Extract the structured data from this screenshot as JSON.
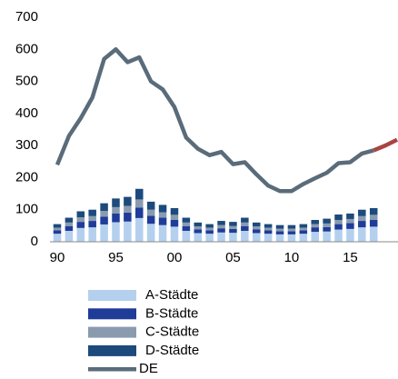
{
  "chart_data": {
    "type": "bar",
    "categories": [
      "90",
      null,
      null,
      null,
      null,
      "95",
      null,
      null,
      null,
      null,
      "00",
      null,
      null,
      null,
      null,
      "05",
      null,
      null,
      null,
      null,
      "10",
      null,
      null,
      null,
      null,
      "15",
      null,
      null,
      null,
      null
    ],
    "stacked": true,
    "series": [
      {
        "name": "A-Städte",
        "color": "#b4d0ee",
        "values": [
          25,
          34,
          43,
          45,
          54,
          61,
          63,
          74,
          56,
          52,
          47,
          34,
          27,
          25,
          29,
          28,
          34,
          27,
          25,
          23,
          23,
          25,
          31,
          32,
          38,
          40,
          45,
          47,
          null,
          null
        ]
      },
      {
        "name": "B-Städte",
        "color": "#1f3c99",
        "values": [
          11,
          15,
          19,
          20,
          24,
          27,
          28,
          33,
          25,
          23,
          21,
          15,
          12,
          11,
          13,
          12,
          15,
          12,
          11,
          10,
          10,
          11,
          14,
          14,
          17,
          18,
          20,
          21,
          null,
          null
        ]
      },
      {
        "name": "C-Städte",
        "color": "#8a9bb0",
        "values": [
          8,
          11,
          14,
          15,
          18,
          20,
          21,
          25,
          19,
          17,
          16,
          11,
          9,
          8,
          10,
          9,
          11,
          9,
          8,
          8,
          8,
          8,
          10,
          11,
          13,
          13,
          15,
          16,
          null,
          null
        ]
      },
      {
        "name": "D-Städte",
        "color": "#1c4a7c",
        "values": [
          11,
          15,
          19,
          20,
          24,
          27,
          28,
          33,
          25,
          23,
          21,
          15,
          12,
          11,
          13,
          13,
          15,
          12,
          11,
          11,
          11,
          11,
          13,
          15,
          17,
          17,
          20,
          21,
          null,
          null
        ]
      },
      {
        "name": "DE",
        "type": "line",
        "color": "#5a6b7a",
        "values": [
          240,
          330,
          385,
          450,
          570,
          600,
          560,
          575,
          500,
          475,
          420,
          325,
          290,
          270,
          280,
          242,
          248,
          210,
          175,
          158,
          158,
          180,
          198,
          215,
          245,
          248,
          275,
          285,
          null,
          null
        ]
      },
      {
        "type": "line",
        "color": "#a94442",
        "values": [
          null,
          null,
          null,
          null,
          null,
          null,
          null,
          null,
          null,
          null,
          null,
          null,
          null,
          null,
          null,
          null,
          null,
          null,
          null,
          null,
          null,
          null,
          null,
          null,
          null,
          null,
          null,
          285,
          300,
          318
        ]
      }
    ],
    "ylim": [
      0,
      700
    ],
    "yticks": [
      0,
      100,
      200,
      300,
      400,
      500,
      600,
      700
    ],
    "grid": false
  }
}
